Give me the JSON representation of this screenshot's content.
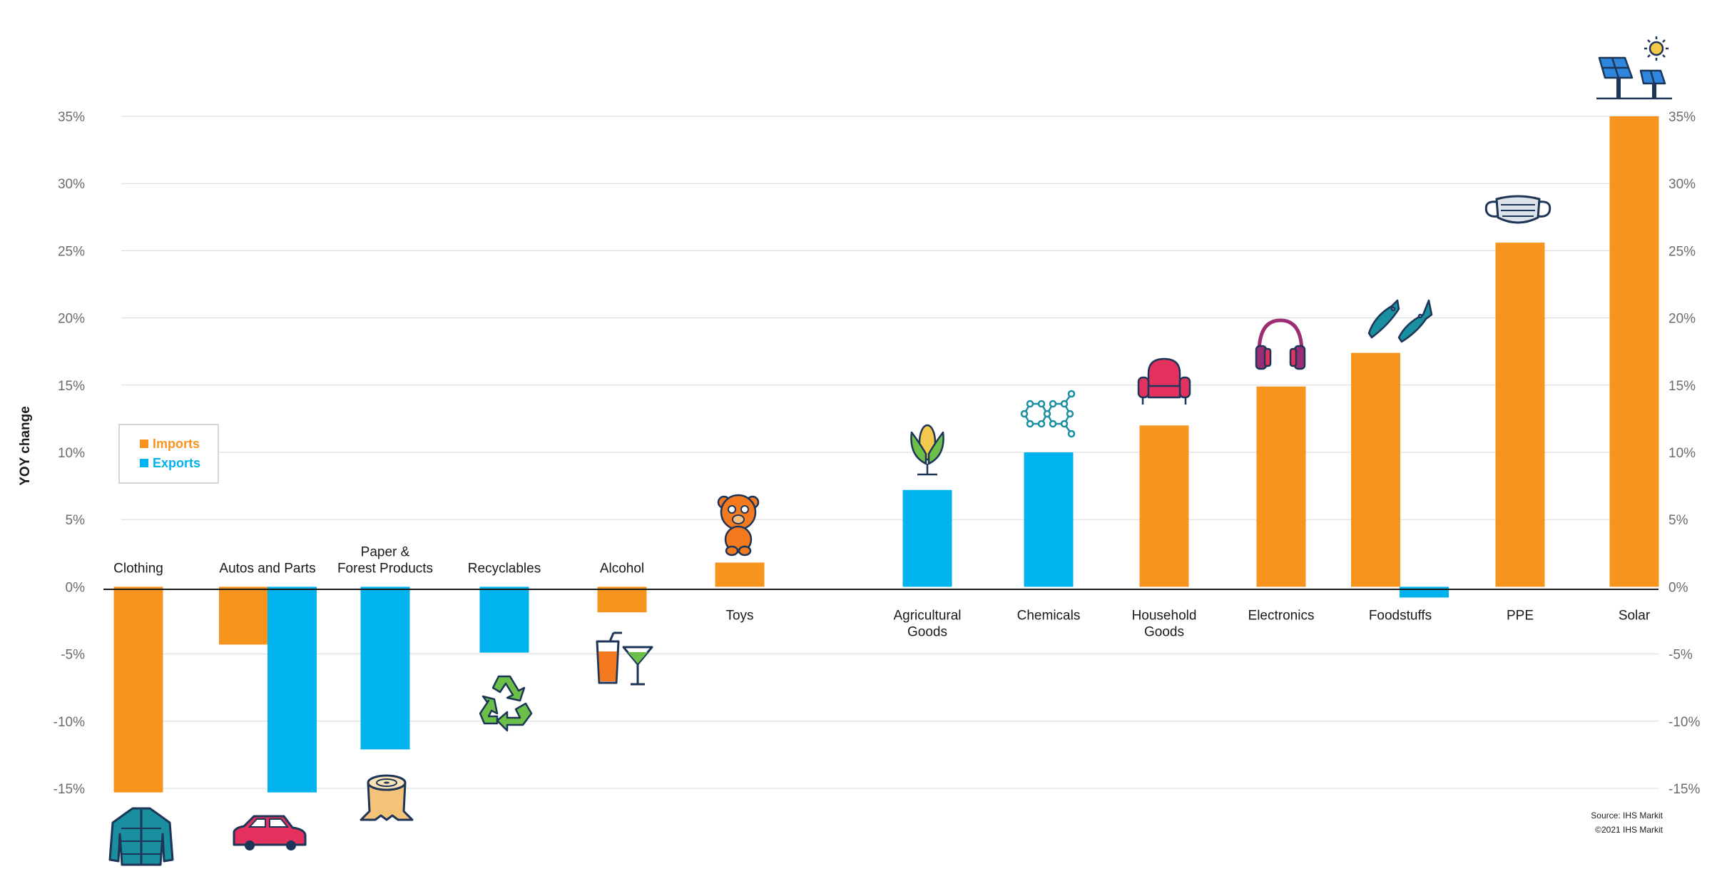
{
  "chart_data": {
    "type": "bar",
    "ylabel": "YOY change",
    "ylim": [
      -15,
      35
    ],
    "yticks": [
      35,
      30,
      25,
      20,
      15,
      10,
      5,
      0,
      -5,
      -10,
      -15
    ],
    "tick_suffix": "%",
    "colors": {
      "Imports": "#f7941d",
      "Exports": "#00b2ee"
    },
    "legend": [
      "Imports",
      "Exports"
    ],
    "legend_position": "left-middle",
    "categories": [
      {
        "label": [
          "Clothing"
        ],
        "icon": "jacket-icon",
        "bars": [
          {
            "series": "Imports",
            "value": -15.3
          }
        ]
      },
      {
        "label": [
          "Autos and Parts"
        ],
        "icon": "car-icon",
        "bars": [
          {
            "series": "Imports",
            "value": -4.3
          },
          {
            "series": "Exports",
            "value": -15.3
          }
        ]
      },
      {
        "label": [
          "Paper &",
          "Forest Products"
        ],
        "icon": "tree-stump-icon",
        "bars": [
          {
            "series": "Exports",
            "value": -12.1
          }
        ]
      },
      {
        "label": [
          "Recyclables"
        ],
        "icon": "recycle-icon",
        "bars": [
          {
            "series": "Exports",
            "value": -4.9
          }
        ]
      },
      {
        "label": [
          "Alcohol"
        ],
        "icon": "drinks-icon",
        "bars": [
          {
            "series": "Imports",
            "value": -1.9
          }
        ]
      },
      {
        "label": [
          "Toys"
        ],
        "icon": "teddy-bear-icon",
        "bars": [
          {
            "series": "Imports",
            "value": 1.8
          }
        ]
      },
      {
        "label": [
          "Agricultural",
          "Goods"
        ],
        "icon": "corn-icon",
        "bars": [
          {
            "series": "Exports",
            "value": 7.2
          }
        ]
      },
      {
        "label": [
          "Chemicals"
        ],
        "icon": "molecule-icon",
        "bars": [
          {
            "series": "Exports",
            "value": 10.0
          }
        ]
      },
      {
        "label": [
          "Household",
          "Goods"
        ],
        "icon": "armchair-icon",
        "bars": [
          {
            "series": "Imports",
            "value": 12.0
          }
        ]
      },
      {
        "label": [
          "Electronics"
        ],
        "icon": "headphones-icon",
        "bars": [
          {
            "series": "Imports",
            "value": 14.9
          }
        ]
      },
      {
        "label": [
          "Foodstuffs"
        ],
        "icon": "fish-icon",
        "bars": [
          {
            "series": "Imports",
            "value": 17.4
          },
          {
            "series": "Exports",
            "value": -0.8
          }
        ]
      },
      {
        "label": [
          "PPE"
        ],
        "icon": "face-mask-icon",
        "bars": [
          {
            "series": "Imports",
            "value": 25.6
          }
        ]
      },
      {
        "label": [
          "Solar"
        ],
        "icon": "solar-panel-icon",
        "bars": [
          {
            "series": "Imports",
            "value": 35.0
          }
        ]
      }
    ],
    "source": [
      "Source: IHS Markit",
      "©2021 IHS Markit"
    ]
  }
}
